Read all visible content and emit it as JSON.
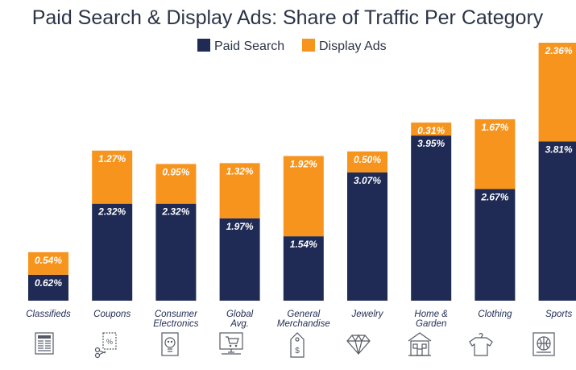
{
  "chart_data": {
    "type": "bar",
    "stacked": true,
    "title": "Paid Search & Display Ads: Share of Traffic Per Category",
    "categories": [
      [
        "Classifieds"
      ],
      [
        "Coupons"
      ],
      [
        "Consumer",
        "Electronics"
      ],
      [
        "Global",
        "Avg."
      ],
      [
        "General",
        "Merchandise"
      ],
      [
        "Jewelry"
      ],
      [
        "Home &",
        "Garden"
      ],
      [
        "Clothing"
      ],
      [
        "Sports"
      ]
    ],
    "icons": [
      "newspaper-icon",
      "coupon-scissors-icon",
      "electronics-icon",
      "shopping-cart-icon",
      "price-tag-icon",
      "diamond-icon",
      "house-icon",
      "shirt-icon",
      "sports-ball-icon"
    ],
    "series": [
      {
        "name": "Paid Search",
        "color": "#1f2b55",
        "values": [
          0.62,
          2.32,
          2.32,
          1.97,
          1.54,
          3.07,
          3.95,
          2.67,
          3.81
        ],
        "labels": [
          "0.62%",
          "2.32%",
          "2.32%",
          "1.97%",
          "1.54%",
          "3.07%",
          "3.95%",
          "2.67%",
          "3.81%"
        ]
      },
      {
        "name": "Display Ads",
        "color": "#f7941d",
        "values": [
          0.54,
          1.27,
          0.95,
          1.32,
          1.92,
          0.5,
          0.31,
          1.67,
          2.36
        ],
        "labels": [
          "0.54%",
          "1.27%",
          "0.95%",
          "1.32%",
          "1.92%",
          "0.50%",
          "0.31%",
          "1.67%",
          "2.36%"
        ]
      }
    ],
    "legend_position": "top-center",
    "grid": false,
    "xlabel": "",
    "ylabel": "",
    "ylim": [
      0,
      6.17
    ]
  }
}
